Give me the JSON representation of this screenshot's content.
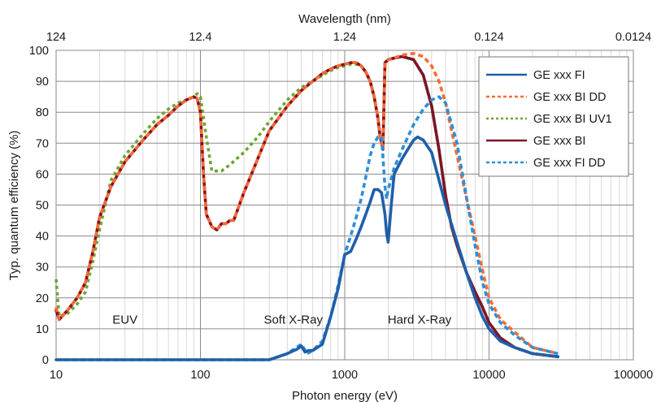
{
  "chart_data": {
    "type": "line",
    "title": "",
    "xlabel": "Photon energy (eV)",
    "x2label": "Wavelength (nm)",
    "ylabel": "Typ. quantum efficiency (%)",
    "xscale": "log",
    "xlim": [
      10,
      100000
    ],
    "ylim": [
      0,
      100
    ],
    "grid": true,
    "legend_position": "top-right",
    "x_ticks": [
      {
        "value": 10,
        "label": "10"
      },
      {
        "value": 100,
        "label": "100"
      },
      {
        "value": 1000,
        "label": "1000"
      },
      {
        "value": 10000,
        "label": "10000"
      },
      {
        "value": 100000,
        "label": "100000"
      }
    ],
    "x2_ticks": [
      {
        "value": 10,
        "label": "124"
      },
      {
        "value": 100,
        "label": "12.4"
      },
      {
        "value": 1000,
        "label": "1.24"
      },
      {
        "value": 10000,
        "label": "0.124"
      },
      {
        "value": 100000,
        "label": "0.0124"
      }
    ],
    "y_ticks": [
      {
        "value": 0,
        "label": "0"
      },
      {
        "value": 10,
        "label": "10"
      },
      {
        "value": 20,
        "label": "20"
      },
      {
        "value": 30,
        "label": "30"
      },
      {
        "value": 40,
        "label": "40"
      },
      {
        "value": 50,
        "label": "50"
      },
      {
        "value": 60,
        "label": "60"
      },
      {
        "value": 70,
        "label": "70"
      },
      {
        "value": 80,
        "label": "80"
      },
      {
        "value": 90,
        "label": "90"
      },
      {
        "value": 100,
        "label": "100"
      }
    ],
    "annotations": [
      {
        "text": "EUV",
        "x": 30,
        "y": 13
      },
      {
        "text": "Soft X-Ray",
        "x": 440,
        "y": 13
      },
      {
        "text": "Hard X-Ray",
        "x": 3300,
        "y": 13
      }
    ],
    "series": [
      {
        "name": "GE xxx BI UV1",
        "color": "#6fa532",
        "style": "dotted",
        "x": [
          10,
          10.5,
          12,
          14,
          16,
          18,
          20,
          24,
          30,
          40,
          50,
          60,
          70,
          80,
          90,
          95,
          100,
          110,
          120,
          140,
          160,
          200,
          250,
          300,
          400,
          500,
          600,
          700,
          800,
          900,
          1000,
          1100,
          1200,
          1300,
          1400,
          1500,
          1600,
          1700,
          1750,
          1800,
          1840,
          1900,
          2000,
          2200,
          2500,
          3000,
          3500,
          4000,
          4500,
          5000,
          5500,
          6000,
          7000,
          8000,
          9000,
          10000,
          12000,
          15000,
          20000,
          30000
        ],
        "y": [
          26,
          14,
          15,
          18,
          22,
          32,
          42,
          58,
          66,
          73,
          78,
          81,
          83,
          84,
          85,
          86,
          85,
          72,
          61,
          61,
          63,
          67,
          72,
          77,
          84,
          88,
          90,
          92,
          93.5,
          94.5,
          95,
          95.5,
          95.5,
          95,
          93,
          90,
          85,
          78,
          73,
          70,
          68,
          96,
          97,
          97.5,
          98,
          97,
          92,
          82,
          68,
          53,
          43,
          37,
          28,
          22,
          17,
          12,
          7,
          4,
          2,
          1
        ]
      },
      {
        "name": "GE xxx BI",
        "color": "#7b1528",
        "style": "solid",
        "x": [
          10,
          10.5,
          12,
          14,
          16,
          18,
          20,
          24,
          30,
          40,
          50,
          60,
          70,
          80,
          90,
          95,
          100,
          105,
          110,
          120,
          130,
          140,
          150,
          160,
          170,
          200,
          250,
          300,
          400,
          500,
          600,
          700,
          800,
          900,
          1000,
          1100,
          1200,
          1300,
          1400,
          1500,
          1600,
          1700,
          1750,
          1800,
          1840,
          1900,
          2000,
          2200,
          2500,
          3000,
          3500,
          4000,
          4500,
          5000,
          5500,
          6000,
          7000,
          8000,
          9000,
          10000,
          12000,
          15000,
          20000,
          30000
        ],
        "y": [
          16,
          13,
          16,
          20,
          25,
          35,
          46,
          56,
          64,
          71,
          76,
          79,
          82,
          84,
          85,
          84.5,
          80,
          60,
          47,
          43,
          42,
          44,
          44,
          45,
          45,
          54,
          65,
          74,
          82,
          87,
          90,
          92.5,
          94,
          95,
          95.5,
          96,
          96,
          95,
          93,
          90,
          85,
          78,
          73,
          70,
          68,
          96,
          97,
          97.5,
          98,
          97,
          92,
          82,
          68,
          53,
          43,
          37,
          28,
          22,
          17,
          12,
          7,
          4,
          2,
          1
        ]
      },
      {
        "name": "GE xxx BI DD",
        "color": "#ff6a33",
        "style": "dashed",
        "x": [
          10,
          10.5,
          12,
          14,
          16,
          18,
          20,
          24,
          30,
          40,
          50,
          60,
          70,
          80,
          90,
          95,
          100,
          105,
          110,
          120,
          130,
          140,
          150,
          160,
          170,
          200,
          250,
          300,
          400,
          500,
          600,
          700,
          800,
          900,
          1000,
          1100,
          1200,
          1300,
          1400,
          1500,
          1600,
          1700,
          1750,
          1800,
          1840,
          1900,
          2000,
          2200,
          2500,
          3000,
          3500,
          4000,
          4500,
          5000,
          5500,
          6000,
          7000,
          8000,
          9000,
          10000,
          12000,
          15000,
          20000,
          30000
        ],
        "y": [
          17,
          13,
          16,
          20,
          25,
          35,
          46,
          56,
          64,
          71,
          76,
          79,
          82,
          84,
          85,
          84.5,
          80,
          60,
          47,
          43,
          42,
          44,
          44,
          45,
          45,
          54,
          65,
          74,
          82,
          87,
          90,
          92.5,
          94,
          95,
          95.5,
          96,
          96,
          95,
          93,
          90,
          85,
          78,
          73,
          70,
          68,
          96,
          97,
          97.5,
          98.5,
          99,
          98,
          95,
          90,
          83,
          74,
          66,
          52,
          40,
          29,
          20,
          13,
          9,
          4,
          2
        ]
      },
      {
        "name": "GE xxx FI DD",
        "color": "#2e8fd8",
        "style": "dashed",
        "x": [
          10,
          100,
          300,
          400,
          500,
          550,
          600,
          700,
          800,
          900,
          1000,
          1100,
          1200,
          1300,
          1400,
          1500,
          1600,
          1700,
          1800,
          1900,
          1950,
          2000,
          2200,
          2500,
          3000,
          3500,
          4000,
          4500,
          5000,
          6000,
          7000,
          8000,
          9000,
          10000,
          12000,
          15000,
          20000,
          30000
        ],
        "y": [
          0,
          0,
          0,
          2,
          5,
          2,
          3,
          6,
          14,
          24,
          34,
          40,
          46,
          52,
          59,
          66,
          70,
          72,
          72,
          56,
          52,
          55,
          62,
          68,
          76,
          81,
          84,
          85,
          83,
          70,
          52,
          37,
          25,
          18,
          12,
          8,
          4,
          2
        ]
      },
      {
        "name": "GE xxx FI",
        "color": "#1f5faa",
        "style": "solid",
        "x": [
          10,
          100,
          300,
          400,
          470,
          500,
          530,
          560,
          600,
          700,
          800,
          900,
          1000,
          1100,
          1200,
          1300,
          1400,
          1500,
          1600,
          1700,
          1800,
          1900,
          1950,
          2000,
          2100,
          2200,
          2500,
          3000,
          3200,
          3500,
          4000,
          5000,
          6000,
          7000,
          8000,
          9000,
          10000,
          12000,
          15000,
          20000,
          30000
        ],
        "y": [
          0,
          0,
          0,
          2,
          3.5,
          4.5,
          2.5,
          3,
          3,
          5,
          14,
          23,
          34,
          35,
          39,
          43,
          47,
          51,
          55,
          55,
          54,
          47,
          41,
          38,
          50,
          60,
          65,
          71,
          72,
          71,
          67,
          50,
          38,
          28,
          20,
          14,
          10,
          6,
          4,
          2,
          1
        ]
      }
    ],
    "legend_order": [
      "GE xxx FI",
      "GE xxx BI DD",
      "GE xxx BI UV1",
      "GE xxx BI",
      "GE xxx FI DD"
    ]
  }
}
